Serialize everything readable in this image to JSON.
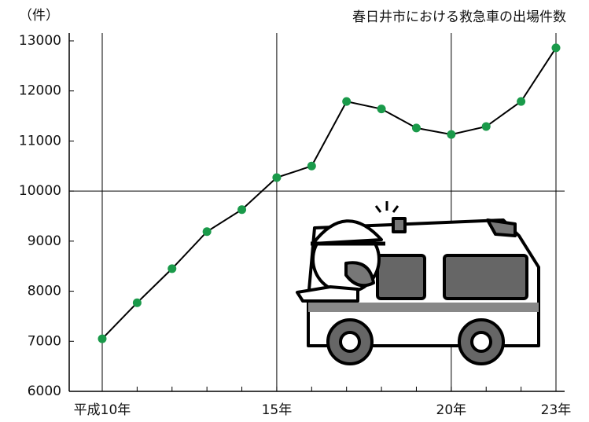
{
  "chart_data": {
    "type": "line",
    "title": "春日井市における救急車の出場件数",
    "y_label": "（件）",
    "categories": [
      "平成10年",
      null,
      null,
      null,
      null,
      "15年",
      null,
      null,
      null,
      null,
      "20年",
      null,
      null,
      "23年"
    ],
    "series": [
      {
        "name": null,
        "color": "#1a9a4a",
        "values": [
          7050,
          7770,
          8450,
          9190,
          9630,
          10270,
          10500,
          11790,
          11640,
          11260,
          11130,
          11290,
          11790,
          12860
        ]
      }
    ],
    "ylim": [
      6000,
      13000
    ],
    "yticks": [
      6000,
      7000,
      8000,
      9000,
      10000,
      11000,
      12000,
      13000
    ],
    "ygrid": [
      10000
    ]
  }
}
